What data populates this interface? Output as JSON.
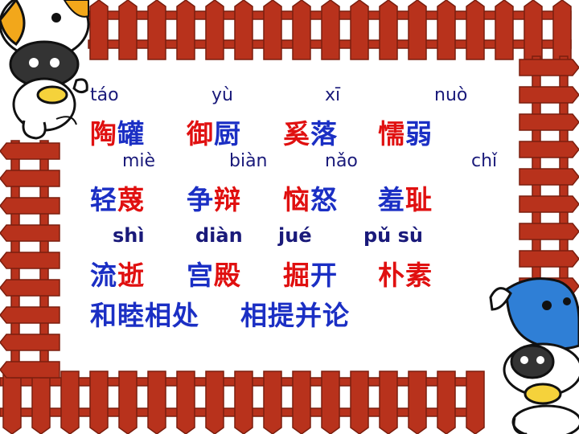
{
  "rows": [
    {
      "pinyin": [
        "táo",
        "yù",
        "xī",
        "nuò"
      ],
      "words": [
        [
          {
            "t": "陶",
            "c": "red"
          },
          {
            "t": "罐",
            "c": "blue"
          }
        ],
        [
          {
            "t": "御",
            "c": "red"
          },
          {
            "t": "厨",
            "c": "blue"
          }
        ],
        [
          {
            "t": "奚",
            "c": "red"
          },
          {
            "t": "落",
            "c": "blue"
          }
        ],
        [
          {
            "t": "懦",
            "c": "red"
          },
          {
            "t": "弱",
            "c": "blue"
          }
        ]
      ]
    },
    {
      "pinyin": [
        "miè",
        "biàn",
        "nǎo",
        "chǐ"
      ],
      "words": [
        [
          {
            "t": "轻",
            "c": "blue"
          },
          {
            "t": "蔑",
            "c": "red"
          }
        ],
        [
          {
            "t": "争",
            "c": "blue"
          },
          {
            "t": "辩",
            "c": "red"
          }
        ],
        [
          {
            "t": "恼",
            "c": "red"
          },
          {
            "t": "怒",
            "c": "blue"
          }
        ],
        [
          {
            "t": "羞",
            "c": "blue"
          },
          {
            "t": "耻",
            "c": "red"
          }
        ]
      ]
    },
    {
      "pinyin": [
        "shì",
        "diàn",
        "jué",
        "pǔ sù"
      ],
      "words": [
        [
          {
            "t": "流",
            "c": "blue"
          },
          {
            "t": "逝",
            "c": "red"
          }
        ],
        [
          {
            "t": "宫",
            "c": "blue"
          },
          {
            "t": "殿",
            "c": "red"
          }
        ],
        [
          {
            "t": "掘",
            "c": "red"
          },
          {
            "t": "开",
            "c": "blue"
          }
        ],
        [
          {
            "t": "朴",
            "c": "red"
          },
          {
            "t": "素",
            "c": "red"
          }
        ]
      ]
    }
  ],
  "idioms": [
    "和睦相处",
    "相提并论"
  ],
  "colors": {
    "red": "#e01010",
    "blue": "#1b2fc4",
    "fence": "#b8321c",
    "fence_dark": "#7a1e0e"
  },
  "icons": [
    "cartoon-cow-top-left",
    "cartoon-cow-bottom-right"
  ]
}
